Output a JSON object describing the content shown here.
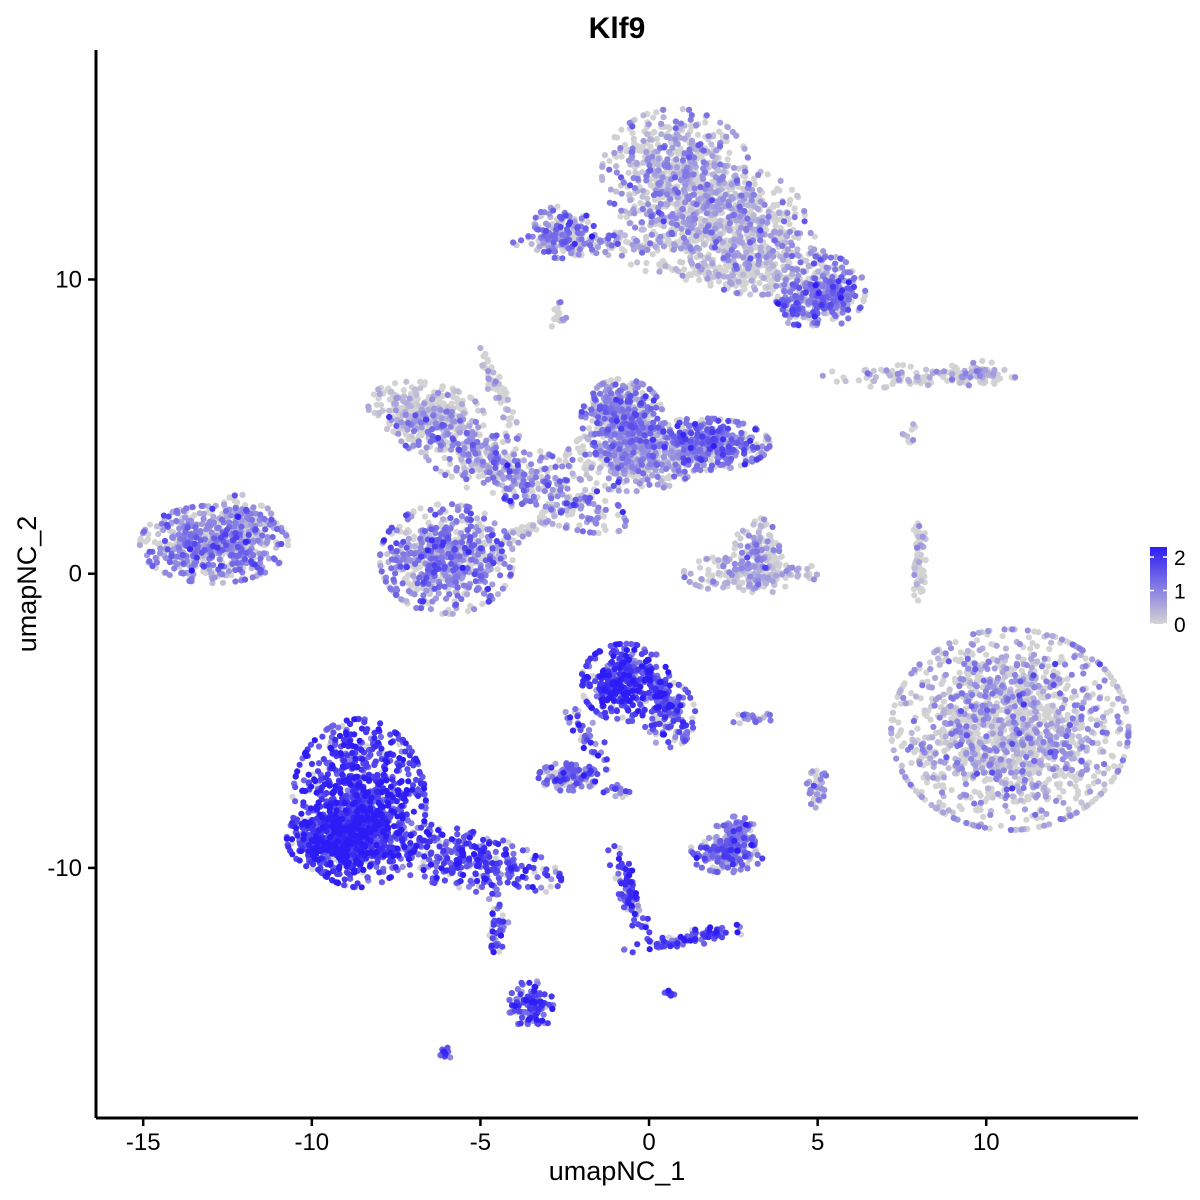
{
  "chart_data": {
    "type": "scatter",
    "title": "Klf9",
    "xlabel": "umapNC_1",
    "ylabel": "umapNC_2",
    "xlim": [
      -16.4,
      14.5
    ],
    "ylim": [
      -18.5,
      17.8
    ],
    "xticks": [
      -15,
      -10,
      -5,
      0,
      5,
      10
    ],
    "yticks": [
      -10,
      0,
      10
    ],
    "grid": false,
    "legend": {
      "placement": "right",
      "ticks": [
        0,
        1,
        2
      ],
      "range": [
        0,
        2.3
      ],
      "color_low": "#d3d3d3",
      "color_high": "#2d1cf5"
    },
    "clusters": [
      {
        "cx": 0.8,
        "cy": 13.6,
        "sx": 1.0,
        "sy": 1.0,
        "n": 620,
        "expr": 0.55,
        "angle": 0
      },
      {
        "cx": 2.2,
        "cy": 12.1,
        "sx": 1.1,
        "sy": 0.8,
        "n": 500,
        "expr": 0.55,
        "angle": 0
      },
      {
        "cx": 3.2,
        "cy": 10.8,
        "sx": 0.9,
        "sy": 0.6,
        "n": 300,
        "expr": 0.45,
        "angle": 0
      },
      {
        "cx": 5.2,
        "cy": 9.6,
        "sx": 0.55,
        "sy": 0.55,
        "n": 260,
        "expr": 1.1,
        "angle": 0
      },
      {
        "cx": 4.5,
        "cy": 9.1,
        "sx": 0.35,
        "sy": 0.3,
        "n": 90,
        "expr": 1.1,
        "angle": 0
      },
      {
        "cx": -2.6,
        "cy": 11.6,
        "sx": 0.45,
        "sy": 0.4,
        "n": 160,
        "expr": 1.0,
        "angle": 0
      },
      {
        "cx": -1.2,
        "cy": 11.2,
        "sx": 1.3,
        "sy": 0.18,
        "n": 140,
        "expr": 0.7,
        "angle": 0
      },
      {
        "cx": 2.5,
        "cy": 10.1,
        "sx": 1.4,
        "sy": 0.18,
        "n": 110,
        "expr": 0.2,
        "angle": -0.12
      },
      {
        "cx": -12.9,
        "cy": 1.0,
        "sx": 1.0,
        "sy": 0.6,
        "n": 620,
        "expr": 0.9,
        "angle": 0
      },
      {
        "cx": -11.9,
        "cy": 1.9,
        "sx": 0.4,
        "sy": 0.3,
        "n": 90,
        "expr": 0.8,
        "angle": -0.8
      },
      {
        "cx": -6.0,
        "cy": 0.5,
        "sx": 0.9,
        "sy": 0.85,
        "n": 650,
        "expr": 1.0,
        "angle": 0
      },
      {
        "cx": -6.6,
        "cy": 5.5,
        "sx": 0.8,
        "sy": 0.45,
        "n": 350,
        "expr": 0.3,
        "angle": -0.2
      },
      {
        "cx": -4.2,
        "cy": 3.5,
        "sx": 1.8,
        "sy": 0.5,
        "n": 500,
        "expr": 0.85,
        "angle": -0.5
      },
      {
        "cx": -0.8,
        "cy": 5.3,
        "sx": 0.55,
        "sy": 0.6,
        "n": 450,
        "expr": 0.9,
        "angle": 0
      },
      {
        "cx": 1.6,
        "cy": 4.4,
        "sx": 0.9,
        "sy": 0.4,
        "n": 480,
        "expr": 1.1,
        "angle": 0
      },
      {
        "cx": -0.5,
        "cy": 3.9,
        "sx": 0.9,
        "sy": 0.5,
        "n": 380,
        "expr": 0.65,
        "angle": 0
      },
      {
        "cx": -4.5,
        "cy": 6.3,
        "sx": 0.12,
        "sy": 0.8,
        "n": 60,
        "expr": 0.3,
        "angle": 0.4
      },
      {
        "cx": -3.6,
        "cy": 1.5,
        "sx": 1.3,
        "sy": 0.1,
        "n": 70,
        "expr": 0.2,
        "angle": 0.6
      },
      {
        "cx": 3.0,
        "cy": 0.0,
        "sx": 0.9,
        "sy": 0.3,
        "n": 180,
        "expr": 0.5,
        "angle": 0
      },
      {
        "cx": 3.2,
        "cy": 0.8,
        "sx": 0.3,
        "sy": 0.5,
        "n": 110,
        "expr": 0.6,
        "angle": 0
      },
      {
        "cx": 8.0,
        "cy": 6.7,
        "sx": 1.3,
        "sy": 0.18,
        "n": 110,
        "expr": 0.3,
        "angle": 0
      },
      {
        "cx": 9.7,
        "cy": 6.8,
        "sx": 0.4,
        "sy": 0.2,
        "n": 60,
        "expr": 0.4,
        "angle": 0
      },
      {
        "cx": 8.0,
        "cy": 0.4,
        "sx": 0.12,
        "sy": 0.6,
        "n": 70,
        "expr": 0.1,
        "angle": 0
      },
      {
        "cx": 10.7,
        "cy": -5.3,
        "sx": 1.6,
        "sy": 1.55,
        "n": 1500,
        "expr": 0.55,
        "angle": 0
      },
      {
        "cx": -8.6,
        "cy": -7.8,
        "sx": 0.9,
        "sy": 1.3,
        "n": 900,
        "expr": 1.85,
        "angle": 0
      },
      {
        "cx": -9.2,
        "cy": -9.0,
        "sx": 0.7,
        "sy": 0.55,
        "n": 500,
        "expr": 1.9,
        "angle": 0
      },
      {
        "cx": -5.6,
        "cy": -9.7,
        "sx": 1.4,
        "sy": 0.45,
        "n": 350,
        "expr": 1.65,
        "angle": -0.25
      },
      {
        "cx": -4.5,
        "cy": -12.1,
        "sx": 0.15,
        "sy": 0.7,
        "n": 40,
        "expr": 1.5,
        "angle": 0
      },
      {
        "cx": -3.5,
        "cy": -14.7,
        "sx": 0.3,
        "sy": 0.4,
        "n": 120,
        "expr": 1.6,
        "angle": 0
      },
      {
        "cx": -0.7,
        "cy": -3.7,
        "sx": 0.6,
        "sy": 0.6,
        "n": 420,
        "expr": 1.8,
        "angle": 0
      },
      {
        "cx": 0.6,
        "cy": -4.8,
        "sx": 0.35,
        "sy": 0.5,
        "n": 140,
        "expr": 1.55,
        "angle": 0
      },
      {
        "cx": -1.8,
        "cy": -5.5,
        "sx": 0.15,
        "sy": 0.6,
        "n": 40,
        "expr": 1.3,
        "angle": 0.5
      },
      {
        "cx": -2.4,
        "cy": -6.9,
        "sx": 0.4,
        "sy": 0.22,
        "n": 150,
        "expr": 1.15,
        "angle": 0
      },
      {
        "cx": 2.3,
        "cy": -9.5,
        "sx": 0.5,
        "sy": 0.3,
        "n": 200,
        "expr": 1.15,
        "angle": 0
      },
      {
        "cx": 2.6,
        "cy": -8.8,
        "sx": 0.3,
        "sy": 0.25,
        "n": 80,
        "expr": 1.1,
        "angle": 0
      },
      {
        "cx": -0.6,
        "cy": -10.8,
        "sx": 0.15,
        "sy": 0.8,
        "n": 90,
        "expr": 1.6,
        "angle": 0.3
      },
      {
        "cx": 1.2,
        "cy": -12.4,
        "sx": 0.9,
        "sy": 0.12,
        "n": 90,
        "expr": 1.7,
        "angle": 0.2
      },
      {
        "cx": 5.0,
        "cy": -7.3,
        "sx": 0.15,
        "sy": 0.3,
        "n": 40,
        "expr": 0.9,
        "angle": 0
      },
      {
        "cx": 3.0,
        "cy": -4.9,
        "sx": 0.3,
        "sy": 0.1,
        "n": 20,
        "expr": 1.1,
        "angle": 0
      },
      {
        "cx": -1.0,
        "cy": -7.4,
        "sx": 0.2,
        "sy": 0.1,
        "n": 15,
        "expr": 1.3,
        "angle": 0
      },
      {
        "cx": -6.1,
        "cy": -16.3,
        "sx": 0.12,
        "sy": 0.1,
        "n": 12,
        "expr": 1.5,
        "angle": 0
      },
      {
        "cx": 0.6,
        "cy": -14.3,
        "sx": 0.08,
        "sy": 0.08,
        "n": 8,
        "expr": 1.5,
        "angle": 0
      },
      {
        "cx": -2.7,
        "cy": 8.8,
        "sx": 0.12,
        "sy": 0.25,
        "n": 15,
        "expr": 0.5,
        "angle": 0
      },
      {
        "cx": 7.7,
        "cy": 4.7,
        "sx": 0.12,
        "sy": 0.2,
        "n": 10,
        "expr": 0.3,
        "angle": 0
      }
    ]
  }
}
